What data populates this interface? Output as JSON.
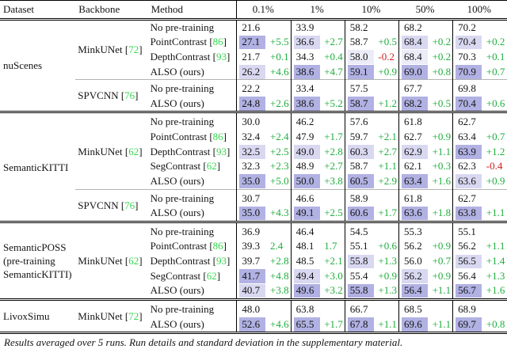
{
  "table": {
    "header": {
      "dataset": "Dataset",
      "backbone": "Backbone",
      "method": "Method",
      "columns": [
        "0.1%",
        "1%",
        "10%",
        "50%",
        "100%"
      ]
    },
    "highlight_colors": {
      "dark": "#b1b1e3",
      "light": "#d8d8f1",
      "xlight": "#ececf8",
      "delta_green": "#1fae3d",
      "delta_red": "#cf1d1d",
      "citation_green": "#35d94e"
    },
    "sections": [
      {
        "dataset_lines": [
          "nuScenes"
        ],
        "groups": [
          {
            "backbone": "MinkUNet",
            "ref": "72",
            "rows": [
              {
                "method": "No pre-training",
                "ref": null,
                "cells": [
                  [
                    "21.6"
                  ],
                  [
                    "33.9"
                  ],
                  [
                    "58.2"
                  ],
                  [
                    "68.2"
                  ],
                  [
                    "70.2"
                  ]
                ]
              },
              {
                "method": "PointContrast",
                "ref": "86",
                "cells": [
                  [
                    "27.1",
                    "+5.5",
                    "dark"
                  ],
                  [
                    "36.6",
                    "+2.7",
                    "light"
                  ],
                  [
                    "58.7",
                    "+0.5"
                  ],
                  [
                    "68.4",
                    "+0.2",
                    "light"
                  ],
                  [
                    "70.4",
                    "+0.2",
                    "light"
                  ]
                ]
              },
              {
                "method": "DepthContrast",
                "ref": "93",
                "cells": [
                  [
                    "21.7",
                    "+0.1"
                  ],
                  [
                    "34.3",
                    "+0.4"
                  ],
                  [
                    "58.0",
                    "-0.2",
                    "xlight"
                  ],
                  [
                    "68.4",
                    "+0.2",
                    "xlight"
                  ],
                  [
                    "70.3",
                    "+0.1"
                  ]
                ]
              },
              {
                "method": "ALSO (ours)",
                "ref": null,
                "cells": [
                  [
                    "26.2",
                    "+4.6",
                    "light"
                  ],
                  [
                    "38.6",
                    "+4.7",
                    "dark"
                  ],
                  [
                    "59.1",
                    "+0.9",
                    "dark"
                  ],
                  [
                    "69.0",
                    "+0.8",
                    "dark"
                  ],
                  [
                    "70.9",
                    "+0.7",
                    "dark"
                  ]
                ]
              }
            ]
          },
          {
            "backbone": "SPVCNN",
            "ref": "76",
            "rows": [
              {
                "method": "No pre-training",
                "ref": null,
                "cells": [
                  [
                    "22.2"
                  ],
                  [
                    "33.4"
                  ],
                  [
                    "57.5"
                  ],
                  [
                    "67.7"
                  ],
                  [
                    "69.8"
                  ]
                ]
              },
              {
                "method": "ALSO (ours)",
                "ref": null,
                "cells": [
                  [
                    "24.8",
                    "+2.6",
                    "dark"
                  ],
                  [
                    "38.6",
                    "+5.2",
                    "dark"
                  ],
                  [
                    "58.7",
                    "+1.2",
                    "dark"
                  ],
                  [
                    "68.2",
                    "+0.5",
                    "dark"
                  ],
                  [
                    "70.4",
                    "+0.6",
                    "dark"
                  ]
                ]
              }
            ]
          }
        ]
      },
      {
        "dataset_lines": [
          "SemanticKITTI"
        ],
        "groups": [
          {
            "backbone": "MinkUNet",
            "ref": "62",
            "rows": [
              {
                "method": "No pre-training",
                "ref": null,
                "cells": [
                  [
                    "30.0"
                  ],
                  [
                    "46.2"
                  ],
                  [
                    "57.6"
                  ],
                  [
                    "61.8"
                  ],
                  [
                    "62.7"
                  ]
                ]
              },
              {
                "method": "PointContrast",
                "ref": "86",
                "cells": [
                  [
                    "32.4",
                    "+2.4"
                  ],
                  [
                    "47.9",
                    "+1.7"
                  ],
                  [
                    "59.7",
                    "+2.1"
                  ],
                  [
                    "62.7",
                    "+0.9"
                  ],
                  [
                    "63.4",
                    "+0.7"
                  ]
                ]
              },
              {
                "method": "DepthContrast",
                "ref": "93",
                "cells": [
                  [
                    "32.5",
                    "+2.5",
                    "light"
                  ],
                  [
                    "49.0",
                    "+2.8",
                    "light"
                  ],
                  [
                    "60.3",
                    "+2.7",
                    "light"
                  ],
                  [
                    "62.9",
                    "+1.1",
                    "light"
                  ],
                  [
                    "63.9",
                    "+1.2",
                    "dark"
                  ]
                ]
              },
              {
                "method": "SegContrast",
                "ref": "62",
                "cells": [
                  [
                    "32.3",
                    "+2.3"
                  ],
                  [
                    "48.9",
                    "+2.7"
                  ],
                  [
                    "58.7",
                    "+1.1"
                  ],
                  [
                    "62.1",
                    "+0.3"
                  ],
                  [
                    "62.3",
                    "-0.4"
                  ]
                ]
              },
              {
                "method": "ALSO (ours)",
                "ref": null,
                "cells": [
                  [
                    "35.0",
                    "+5.0",
                    "dark"
                  ],
                  [
                    "50.0",
                    "+3.8",
                    "dark"
                  ],
                  [
                    "60.5",
                    "+2.9",
                    "dark"
                  ],
                  [
                    "63.4",
                    "+1.6",
                    "dark"
                  ],
                  [
                    "63.6",
                    "+0.9",
                    "light"
                  ]
                ]
              }
            ]
          },
          {
            "backbone": "SPVCNN",
            "ref": "76",
            "rows": [
              {
                "method": "No pre-training",
                "ref": null,
                "cells": [
                  [
                    "30.7"
                  ],
                  [
                    "46.6"
                  ],
                  [
                    "58.9"
                  ],
                  [
                    "61.8"
                  ],
                  [
                    "62.7"
                  ]
                ]
              },
              {
                "method": "ALSO (ours)",
                "ref": null,
                "cells": [
                  [
                    "35.0",
                    "+4.3",
                    "dark"
                  ],
                  [
                    "49.1",
                    "+2.5",
                    "dark"
                  ],
                  [
                    "60.6",
                    "+1.7",
                    "dark"
                  ],
                  [
                    "63.6",
                    "+1.8",
                    "dark"
                  ],
                  [
                    "63.8",
                    "+1.1",
                    "dark"
                  ]
                ]
              }
            ]
          }
        ]
      },
      {
        "dataset_lines": [
          "SemanticPOSS",
          "(pre-training",
          "SemanticKITTI)"
        ],
        "groups": [
          {
            "backbone": "MinkUNet",
            "ref": "62",
            "rows": [
              {
                "method": "No pre-training",
                "ref": null,
                "cells": [
                  [
                    "36.9"
                  ],
                  [
                    "46.4"
                  ],
                  [
                    "54.5"
                  ],
                  [
                    "55.3"
                  ],
                  [
                    "55.1"
                  ]
                ]
              },
              {
                "method": "PointContrast",
                "ref": "86",
                "cells": [
                  [
                    "39.3",
                    "2.4"
                  ],
                  [
                    "48.1",
                    "1.7"
                  ],
                  [
                    "55.1",
                    "+0.6"
                  ],
                  [
                    "56.2",
                    "+0.9"
                  ],
                  [
                    "56.2",
                    "+1.1"
                  ]
                ]
              },
              {
                "method": "DepthContrast",
                "ref": "93",
                "cells": [
                  [
                    "39.7",
                    "+2.8"
                  ],
                  [
                    "48.5",
                    "+2.1"
                  ],
                  [
                    "55.8",
                    "+1.3",
                    "light"
                  ],
                  [
                    "56.0",
                    "+0.7"
                  ],
                  [
                    "56.5",
                    "+1.4",
                    "light"
                  ]
                ]
              },
              {
                "method": "SegContrast",
                "ref": "62",
                "cells": [
                  [
                    "41.7",
                    "+4.8",
                    "dark"
                  ],
                  [
                    "49.4",
                    "+3.0",
                    "light"
                  ],
                  [
                    "55.4",
                    "+0.9"
                  ],
                  [
                    "56.2",
                    "+0.9",
                    "light"
                  ],
                  [
                    "56.4",
                    "+1.3"
                  ]
                ]
              },
              {
                "method": "ALSO (ours)",
                "ref": null,
                "cells": [
                  [
                    "40.7",
                    "+3.8",
                    "light"
                  ],
                  [
                    "49.6",
                    "+3.2",
                    "dark"
                  ],
                  [
                    "55.8",
                    "+1.3",
                    "dark"
                  ],
                  [
                    "56.4",
                    "+1.1",
                    "dark"
                  ],
                  [
                    "56.7",
                    "+1.6",
                    "dark"
                  ]
                ]
              }
            ]
          }
        ]
      },
      {
        "dataset_lines": [
          "LivoxSimu"
        ],
        "groups": [
          {
            "backbone": "MinkUNet",
            "ref": "72",
            "rows": [
              {
                "method": "No pre-training",
                "ref": null,
                "cells": [
                  [
                    "48.0"
                  ],
                  [
                    "63.8"
                  ],
                  [
                    "66.7"
                  ],
                  [
                    "68.5"
                  ],
                  [
                    "68.9"
                  ]
                ]
              },
              {
                "method": "ALSO (ours)",
                "ref": null,
                "cells": [
                  [
                    "52.6",
                    "+4.6",
                    "dark"
                  ],
                  [
                    "65.5",
                    "+1.7",
                    "dark"
                  ],
                  [
                    "67.8",
                    "+1.1",
                    "dark"
                  ],
                  [
                    "69.6",
                    "+1.1",
                    "dark"
                  ],
                  [
                    "69.7",
                    "+0.8",
                    "dark"
                  ]
                ]
              }
            ]
          }
        ]
      }
    ],
    "footer": "Results averaged over 5 runs. Run details and standard deviation in the supplementary material."
  }
}
